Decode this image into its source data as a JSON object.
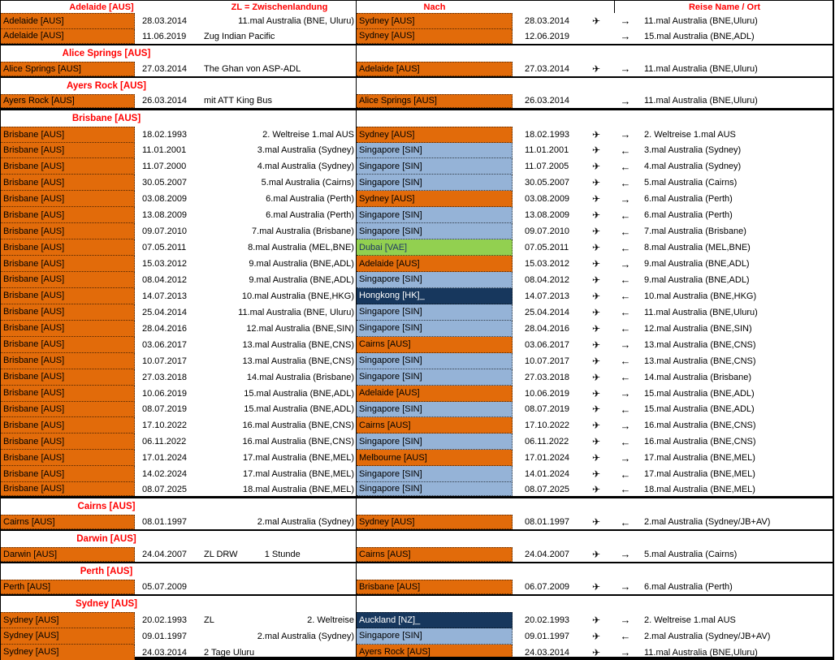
{
  "title": "Australien Reisen Übersicht (Spreadsheet)",
  "colors": {
    "orange": "#E26B0A",
    "light_blue": "#95B3D7",
    "green": "#92D050",
    "navy": "#17375D",
    "header_red": "#FF0000"
  },
  "icons": {
    "plane": "✈",
    "arrow_right": "→",
    "arrow_left": "←"
  },
  "header": {
    "from": "Adelaide [AUS]",
    "zl": "ZL = Zwischenlandung",
    "nach": "Nach",
    "reise": "Reise Name / Ort"
  },
  "rows": [
    {
      "type": "trip",
      "first": true,
      "from": "Adelaide [AUS]",
      "date1": "28.03.2014",
      "zl_right": "11.mal Australia (BNE, Uluru)",
      "nach": "Sydney [AUS]",
      "nach_style": "orange",
      "date2": "28.03.2014",
      "plane": true,
      "dir": "right",
      "reise": "11.mal Australia (BNE,Uluru)"
    },
    {
      "type": "trip",
      "from": "Adelaide [AUS]",
      "date1": "11.06.2019",
      "zl_left": "Zug Indian Pacific",
      "nach": "Sydney [AUS]",
      "nach_style": "orange",
      "date2": "12.06.2019",
      "plane": false,
      "dir": "right",
      "reise": "15.mal Australia (BNE,ADL)",
      "sep": "thin"
    },
    {
      "type": "section",
      "title": "Alice Springs [AUS]"
    },
    {
      "type": "trip",
      "first": true,
      "from": "Alice Springs [AUS]",
      "date1": "27.03.2014",
      "zl_left": "The Ghan von ASP-ADL",
      "nach": "Adelaide [AUS]",
      "nach_style": "orange",
      "date2": "27.03.2014",
      "plane": true,
      "dir": "right",
      "reise": "11.mal Australia (BNE,Uluru)",
      "sep": "thin"
    },
    {
      "type": "section",
      "title": "Ayers Rock [AUS]"
    },
    {
      "type": "trip",
      "first": true,
      "from": "Ayers Rock [AUS]",
      "date1": "26.03.2014",
      "zl_left": "mit ATT King Bus",
      "nach": "Alice Springs [AUS]",
      "nach_style": "orange",
      "date2": "26.03.2014",
      "plane": false,
      "dir": "right",
      "reise": "11.mal Australia (BNE,Uluru)",
      "sep": "thick"
    },
    {
      "type": "section",
      "title": "Brisbane [AUS]"
    },
    {
      "type": "trip",
      "first": true,
      "from": "Brisbane [AUS]",
      "date1": "18.02.1993",
      "zl_right": "2. Weltreise  1.mal AUS",
      "nach": "Sydney [AUS]",
      "nach_style": "orange",
      "date2": "18.02.1993",
      "plane": true,
      "dir": "right",
      "reise": "2. Weltreise 1.mal AUS"
    },
    {
      "type": "trip",
      "from": "Brisbane [AUS]",
      "date1": "11.01.2001",
      "zl_right": "3.mal Australia (Sydney)",
      "nach": "Singapore [SIN]",
      "nach_style": "blue",
      "date2": "11.01.2001",
      "plane": true,
      "dir": "left",
      "reise": "3.mal Australia (Sydney)"
    },
    {
      "type": "trip",
      "from": "Brisbane [AUS]",
      "date1": "11.07.2000",
      "zl_right": "4.mal Australia (Sydney)",
      "nach": "Singapore [SIN]",
      "nach_style": "blue",
      "date2": "11.07.2005",
      "plane": true,
      "dir": "left",
      "reise": "4.mal Australia (Sydney)"
    },
    {
      "type": "trip",
      "from": "Brisbane [AUS]",
      "date1": "30.05.2007",
      "zl_right": "5.mal Australia (Cairns)",
      "nach": "Singapore [SIN]",
      "nach_style": "blue",
      "date2": "30.05.2007",
      "plane": true,
      "dir": "left",
      "reise": "5.mal Australia (Cairns)"
    },
    {
      "type": "trip",
      "from": "Brisbane [AUS]",
      "date1": "03.08.2009",
      "zl_right": "6.mal Australia (Perth)",
      "nach": "Sydney [AUS]",
      "nach_style": "orange",
      "date2": "03.08.2009",
      "plane": true,
      "dir": "right",
      "reise": "6.mal Australia (Perth)"
    },
    {
      "type": "trip",
      "from": "Brisbane [AUS]",
      "date1": "13.08.2009",
      "zl_right": "6.mal Australia (Perth)",
      "nach": "Singapore [SIN]",
      "nach_style": "blue",
      "date2": "13.08.2009",
      "plane": true,
      "dir": "left",
      "reise": "6.mal Australia (Perth)"
    },
    {
      "type": "trip",
      "from": "Brisbane [AUS]",
      "date1": "09.07.2010",
      "zl_right": "7.mal Australia (Brisbane)",
      "nach": "Singapore [SIN]",
      "nach_style": "blue",
      "date2": "09.07.2010",
      "plane": true,
      "dir": "left",
      "reise": "7.mal Australia (Brisbane)"
    },
    {
      "type": "trip",
      "from": "Brisbane [AUS]",
      "date1": "07.05.2011",
      "zl_right": "8.mal Australia (MEL,BNE)",
      "nach": "Dubai [VAE]",
      "nach_style": "green",
      "date2": "07.05.2011",
      "plane": true,
      "dir": "left",
      "reise": "8.mal Australia (MEL,BNE)"
    },
    {
      "type": "trip",
      "from": "Brisbane [AUS]",
      "date1": "15.03.2012",
      "zl_right": "9.mal Australia (BNE,ADL)",
      "nach": "Adelaide [AUS]",
      "nach_style": "orange",
      "date2": "15.03.2012",
      "plane": true,
      "dir": "right",
      "reise": "9.mal Australia (BNE,ADL)"
    },
    {
      "type": "trip",
      "from": "Brisbane [AUS]",
      "date1": "08.04.2012",
      "zl_right": "9.mal Australia (BNE,ADL)",
      "nach": "Singapore [SIN]",
      "nach_style": "blue",
      "date2": "08.04.2012",
      "plane": true,
      "dir": "left",
      "reise": "9.mal Australia (BNE,ADL)"
    },
    {
      "type": "trip",
      "from": "Brisbane [AUS]",
      "date1": "14.07.2013",
      "zl_right": "10.mal Australia (BNE,HKG)",
      "nach": "Hongkong [HK]_",
      "nach_style": "navy",
      "date2": "14.07.2013",
      "plane": true,
      "dir": "left",
      "reise": "10.mal Australia (BNE,HKG)"
    },
    {
      "type": "trip",
      "from": "Brisbane [AUS]",
      "date1": "25.04.2014",
      "zl_right": "11.mal Australia (BNE, Uluru)",
      "nach": "Singapore [SIN]",
      "nach_style": "blue",
      "date2": "25.04.2014",
      "plane": true,
      "dir": "left",
      "reise": "11.mal Australia (BNE,Uluru)"
    },
    {
      "type": "trip",
      "from": "Brisbane [AUS]",
      "date1": "28.04.2016",
      "zl_right": "12.mal Australia (BNE,SIN)",
      "nach": "Singapore [SIN]",
      "nach_style": "blue",
      "date2": "28.04.2016",
      "plane": true,
      "dir": "left",
      "reise": "12.mal Australia (BNE,SIN)"
    },
    {
      "type": "trip",
      "from": "Brisbane [AUS]",
      "date1": "03.06.2017",
      "zl_right": "13.mal Australia (BNE,CNS)",
      "nach": "Cairns [AUS]",
      "nach_style": "orange",
      "date2": "03.06.2017",
      "plane": true,
      "dir": "right",
      "reise": "13.mal Australia (BNE,CNS)"
    },
    {
      "type": "trip",
      "from": "Brisbane [AUS]",
      "date1": "10.07.2017",
      "zl_right": "13.mal Australia (BNE,CNS)",
      "nach": "Singapore [SIN]",
      "nach_style": "blue",
      "date2": "10.07.2017",
      "plane": true,
      "dir": "left",
      "reise": "13.mal Australia (BNE,CNS)"
    },
    {
      "type": "trip",
      "from": "Brisbane [AUS]",
      "date1": "27.03.2018",
      "zl_right": "14.mal Australia (Brisbane)",
      "nach": "Singapore [SIN]",
      "nach_style": "blue",
      "date2": "27.03.2018",
      "plane": true,
      "dir": "left",
      "reise": "14.mal Australia (Brisbane)"
    },
    {
      "type": "trip",
      "from": "Brisbane [AUS]",
      "date1": "10.06.2019",
      "zl_right": "15.mal Australia (BNE,ADL)",
      "nach": "Adelaide [AUS]",
      "nach_style": "orange",
      "date2": "10.06.2019",
      "plane": true,
      "dir": "right",
      "reise": "15.mal Australia (BNE,ADL)"
    },
    {
      "type": "trip",
      "from": "Brisbane [AUS]",
      "date1": "08.07.2019",
      "zl_right": "15.mal Australia (BNE,ADL)",
      "nach": "Singapore [SIN]",
      "nach_style": "blue",
      "date2": "08.07.2019",
      "plane": true,
      "dir": "left",
      "reise": "15.mal Australia (BNE,ADL)"
    },
    {
      "type": "trip",
      "from": "Brisbane [AUS]",
      "date1": "17.10.2022",
      "zl_right": "16.mal Australia (BNE,CNS)",
      "nach": "Cairns [AUS]",
      "nach_style": "orange",
      "date2": "17.10.2022",
      "plane": true,
      "dir": "right",
      "reise": "16.mal Australia (BNE,CNS)"
    },
    {
      "type": "trip",
      "from": "Brisbane [AUS]",
      "date1": "06.11.2022",
      "zl_right": "16.mal Australia (BNE,CNS)",
      "nach": "Singapore [SIN]",
      "nach_style": "blue",
      "date2": "06.11.2022",
      "plane": true,
      "dir": "left",
      "reise": "16.mal Australia (BNE,CNS)"
    },
    {
      "type": "trip",
      "from": "Brisbane [AUS]",
      "date1": "17.01.2024",
      "zl_right": "17.mal Australia (BNE,MEL)",
      "nach": "Melbourne [AUS]",
      "nach_style": "orange",
      "date2": "17.01.2024",
      "plane": true,
      "dir": "right",
      "reise": "17.mal Australia (BNE,MEL)"
    },
    {
      "type": "trip",
      "from": "Brisbane [AUS]",
      "date1": "14.02.2024",
      "zl_right": "17.mal Australia (BNE,MEL)",
      "nach": "Singapore [SIN]",
      "nach_style": "blue",
      "date2": "14.01.2024",
      "plane": true,
      "dir": "left",
      "reise": "17.mal Australia (BNE,MEL)"
    },
    {
      "type": "trip",
      "from": "Brisbane [AUS]",
      "date1": "08.07.2025",
      "zl_right": "18.mal Australia (BNE,MEL)",
      "nach": "Singapore [SIN]",
      "nach_style": "blue",
      "date2": "08.07.2025",
      "plane": true,
      "dir": "left",
      "reise": "18.mal Australia (BNE,MEL)",
      "sep": "thick"
    },
    {
      "type": "section",
      "title": "Cairns [AUS]"
    },
    {
      "type": "trip",
      "first": true,
      "from": "Cairns [AUS]",
      "date1": "08.01.1997",
      "zl_right": "2.mal Australia (Sydney)",
      "nach": "Sydney [AUS]",
      "nach_style": "orange",
      "date2": "08.01.1997",
      "plane": true,
      "dir": "left",
      "reise": "2.mal Australia (Sydney/JB+AV)",
      "sep": "thin"
    },
    {
      "type": "section",
      "title": "Darwin [AUS]"
    },
    {
      "type": "trip",
      "first": true,
      "from": "Darwin [AUS]",
      "date1": "24.04.2007",
      "zl_left": "ZL DRW",
      "zl_center": "1 Stunde",
      "nach": "Cairns [AUS]",
      "nach_style": "orange",
      "date2": "24.04.2007",
      "plane": true,
      "dir": "right",
      "reise": "5.mal Australia (Cairns)",
      "sep": "thin"
    },
    {
      "type": "section",
      "title": "Perth [AUS]"
    },
    {
      "type": "trip",
      "first": true,
      "from": "Perth [AUS]",
      "date1": "05.07.2009",
      "nach": "Brisbane [AUS]",
      "nach_style": "orange",
      "date2": "06.07.2009",
      "plane": true,
      "dir": "right",
      "reise": "6.mal Australia (Perth)",
      "sep": "thin"
    },
    {
      "type": "section",
      "title": "Sydney [AUS]"
    },
    {
      "type": "trip",
      "first": true,
      "from": "Sydney [AUS]",
      "date1": "20.02.1993",
      "zl_left": "ZL",
      "zl_right": "2. Weltreise",
      "nach": "Auckland [NZ]_",
      "nach_style": "navy",
      "date2": "20.02.1993",
      "plane": true,
      "dir": "right",
      "reise": "2. Weltreise 1.mal AUS"
    },
    {
      "type": "trip",
      "from": "Sydney [AUS]",
      "date1": "09.01.1997",
      "zl_right": "2.mal Australia (Sydney)",
      "nach": "Singapore [SIN]",
      "nach_style": "blue",
      "date2": "09.01.1997",
      "plane": true,
      "dir": "left",
      "reise": "2.mal Australia (Sydney/JB+AV)"
    },
    {
      "type": "trip",
      "from": "Sydney [AUS]",
      "date1": "24.03.2014",
      "zl_left": "2 Tage Uluru",
      "nach": "Ayers Rock [AUS]",
      "nach_style": "orange",
      "date2": "24.03.2014",
      "plane": true,
      "dir": "right",
      "reise": "11.mal Australia (BNE,Uluru)"
    }
  ]
}
